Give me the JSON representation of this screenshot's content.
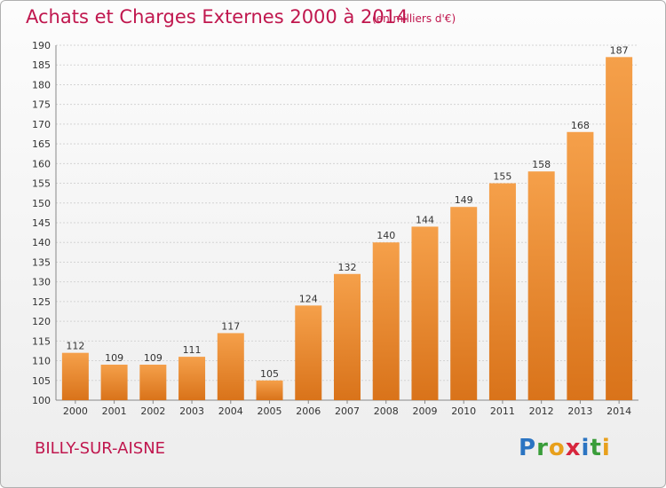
{
  "chart_data": {
    "type": "bar",
    "title": "Achats et Charges Externes 2000 à 2014",
    "subtitle": "(en milliers d'€)",
    "categories": [
      "2000",
      "2001",
      "2002",
      "2003",
      "2004",
      "2005",
      "2006",
      "2007",
      "2008",
      "2009",
      "2010",
      "2011",
      "2012",
      "2013",
      "2014"
    ],
    "values": [
      112,
      109,
      109,
      111,
      117,
      105,
      124,
      132,
      140,
      144,
      149,
      155,
      158,
      168,
      187
    ],
    "ylim": [
      100,
      190
    ],
    "yticks": [
      100,
      105,
      110,
      115,
      120,
      125,
      130,
      135,
      140,
      145,
      150,
      155,
      160,
      165,
      170,
      175,
      180,
      185,
      190
    ],
    "grid": true,
    "bar_color_top": "#f5a04a",
    "bar_color_bottom": "#d9731a"
  },
  "footer": {
    "commune": "BILLY-SUR-AISNE",
    "logo": "Proxiti"
  },
  "colors": {
    "accent": "#c0174e"
  }
}
